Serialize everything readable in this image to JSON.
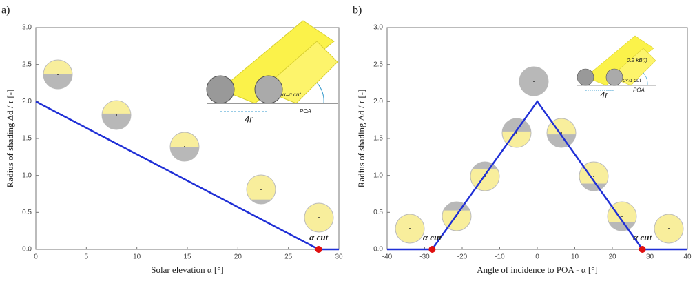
{
  "chart_data": [
    {
      "type": "line",
      "panel": "a)",
      "xlabel": "Solar elevation  α [°]",
      "ylabel": "Radius of shading Δd / r [-]",
      "xlim": [
        0,
        30
      ],
      "xticks": [
        0,
        5,
        10,
        15,
        20,
        25,
        30
      ],
      "ylim": [
        0,
        3
      ],
      "yticks": [
        {
          "value": 0,
          "label": "0.0"
        },
        {
          "value": 0.5,
          "label": "0.5"
        },
        {
          "value": 1,
          "label": "1.0"
        },
        {
          "value": 1.5,
          "label": "1.5"
        },
        {
          "value": 2,
          "label": "2.0"
        },
        {
          "value": 2.5,
          "label": "2.5"
        },
        {
          "value": 3,
          "label": "3.0"
        }
      ],
      "series": [
        {
          "color": "#1f2fd6",
          "x": [
            0,
            28,
            30
          ],
          "values": [
            2,
            0,
            0
          ]
        }
      ],
      "markers": {
        "color": "#e01010",
        "x": [
          28
        ],
        "values": [
          0
        ],
        "labels": [
          "α cut"
        ]
      },
      "annotations": [
        "4r",
        "POA",
        "α=α cut"
      ]
    },
    {
      "type": "line",
      "panel": "b)",
      "xlabel": "Angle of incidence to POA - α [°]",
      "ylabel": "Radius of shading Δd / r [-]",
      "xlim": [
        -40,
        40
      ],
      "xticks": [
        -40,
        -30,
        -20,
        -10,
        0,
        10,
        20,
        30,
        40
      ],
      "ylim": [
        0,
        3
      ],
      "yticks": [
        {
          "value": 0,
          "label": "0.0"
        },
        {
          "value": 0.5,
          "label": "0.5"
        },
        {
          "value": 1,
          "label": "1.0"
        },
        {
          "value": 1.5,
          "label": "1.5"
        },
        {
          "value": 2,
          "label": "2.0"
        },
        {
          "value": 2.5,
          "label": "2.5"
        },
        {
          "value": 3,
          "label": "3.0"
        }
      ],
      "series": [
        {
          "color": "#1f2fd6",
          "x": [
            -40,
            -28,
            0,
            28,
            40
          ],
          "values": [
            0,
            0,
            2,
            0,
            0
          ]
        }
      ],
      "markers": {
        "color": "#e01010",
        "x": [
          -28,
          28
        ],
        "values": [
          0,
          0
        ],
        "labels": [
          "α cut",
          "α cut"
        ]
      },
      "annotations": [
        "4r",
        "POA",
        "α<α cut",
        "0.2 kB(l)"
      ]
    }
  ]
}
